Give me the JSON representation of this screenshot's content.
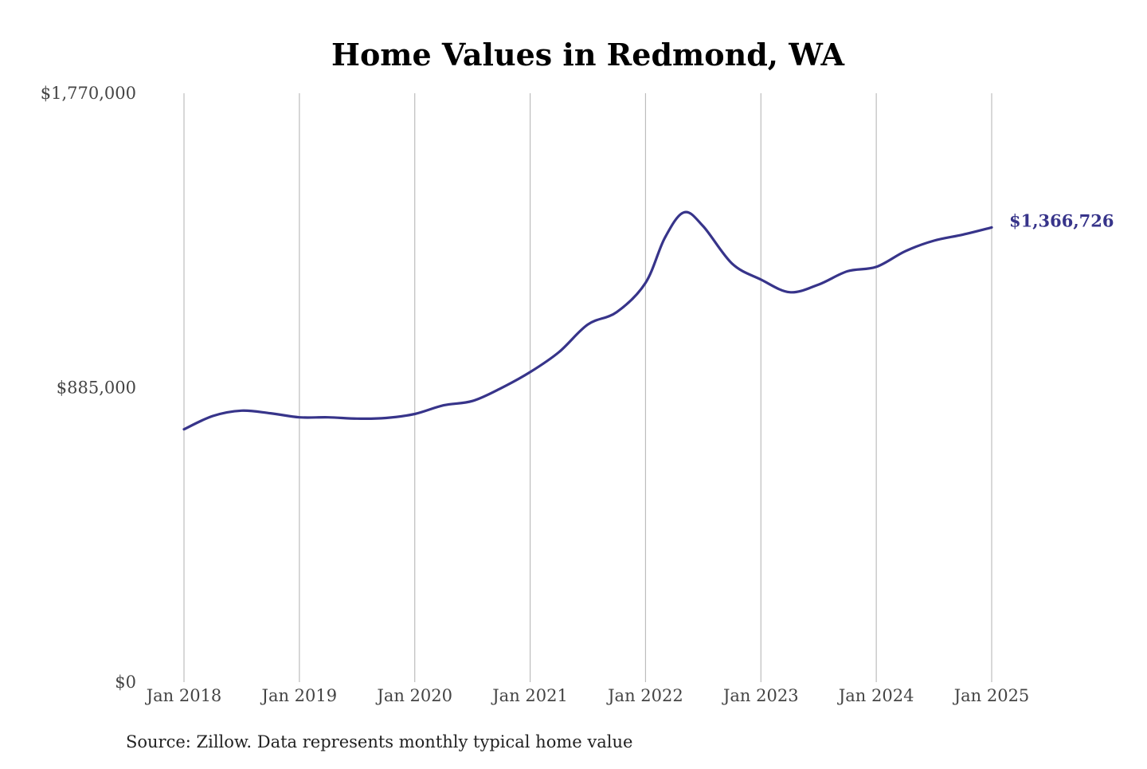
{
  "chart_data": {
    "type": "line",
    "title": "Home Values in Redmond, WA",
    "source_note": "Source: Zillow. Data represents monthly typical home value",
    "xlabel": "",
    "ylabel": "",
    "ylim": [
      0,
      1770000
    ],
    "y_ticks": [
      {
        "value": 0,
        "label": "$0"
      },
      {
        "value": 885000,
        "label": "$885,000"
      },
      {
        "value": 1770000,
        "label": "$1,770,000"
      }
    ],
    "x_ticks": [
      "Jan 2018",
      "Jan 2019",
      "Jan 2020",
      "Jan 2021",
      "Jan 2022",
      "Jan 2023",
      "Jan 2024",
      "Jan 2025"
    ],
    "x_range": [
      "2018-01",
      "2025-01"
    ],
    "grid": {
      "vertical": true,
      "horizontal": false
    },
    "series": [
      {
        "color": "#37348a",
        "points": [
          {
            "x": "2018-01",
            "y": 760000
          },
          {
            "x": "2018-04",
            "y": 800000
          },
          {
            "x": "2018-07",
            "y": 816000
          },
          {
            "x": "2018-10",
            "y": 808000
          },
          {
            "x": "2019-01",
            "y": 796000
          },
          {
            "x": "2019-04",
            "y": 796000
          },
          {
            "x": "2019-07",
            "y": 792000
          },
          {
            "x": "2019-10",
            "y": 794000
          },
          {
            "x": "2020-01",
            "y": 806000
          },
          {
            "x": "2020-04",
            "y": 832000
          },
          {
            "x": "2020-07",
            "y": 845000
          },
          {
            "x": "2020-10",
            "y": 884000
          },
          {
            "x": "2021-01",
            "y": 932000
          },
          {
            "x": "2021-04",
            "y": 992000
          },
          {
            "x": "2021-07",
            "y": 1075000
          },
          {
            "x": "2021-10",
            "y": 1112000
          },
          {
            "x": "2022-01",
            "y": 1200000
          },
          {
            "x": "2022-03",
            "y": 1335000
          },
          {
            "x": "2022-05",
            "y": 1412000
          },
          {
            "x": "2022-07",
            "y": 1370000
          },
          {
            "x": "2022-10",
            "y": 1258000
          },
          {
            "x": "2023-01",
            "y": 1210000
          },
          {
            "x": "2023-04",
            "y": 1172000
          },
          {
            "x": "2023-07",
            "y": 1195000
          },
          {
            "x": "2023-10",
            "y": 1235000
          },
          {
            "x": "2024-01",
            "y": 1248000
          },
          {
            "x": "2024-04",
            "y": 1295000
          },
          {
            "x": "2024-07",
            "y": 1327000
          },
          {
            "x": "2024-10",
            "y": 1345000
          },
          {
            "x": "2025-01",
            "y": 1366726
          }
        ]
      }
    ],
    "end_label": "$1,366,726"
  }
}
